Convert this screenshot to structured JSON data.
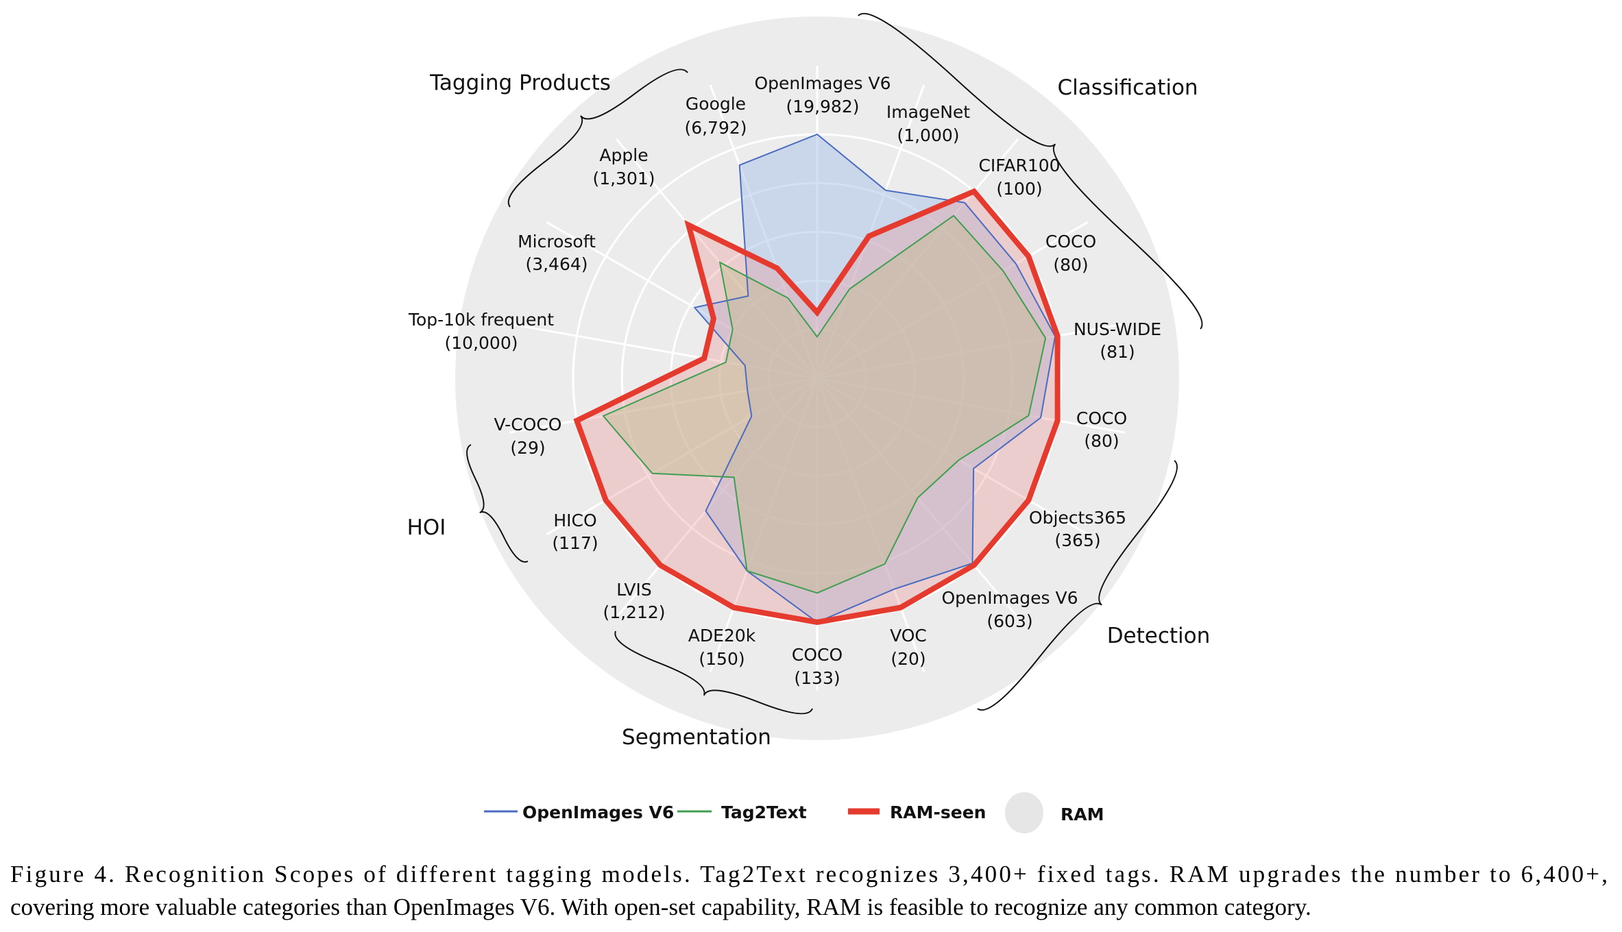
{
  "chart_data": {
    "type": "radar",
    "title": "",
    "range": [
      0,
      1
    ],
    "grid": true,
    "axes": [
      {
        "name": "OpenImages V6",
        "count": "(19,982)"
      },
      {
        "name": "ImageNet",
        "count": "(1,000)"
      },
      {
        "name": "CIFAR100",
        "count": "(100)"
      },
      {
        "name": "COCO",
        "count": "(80)"
      },
      {
        "name": "NUS-WIDE",
        "count": "(81)"
      },
      {
        "name": "COCO",
        "count": "(80)"
      },
      {
        "name": "Objects365",
        "count": "(365)"
      },
      {
        "name": "OpenImages V6",
        "count": "(603)"
      },
      {
        "name": "VOC",
        "count": "(20)"
      },
      {
        "name": "COCO",
        "count": "(133)"
      },
      {
        "name": "ADE20k",
        "count": "(150)"
      },
      {
        "name": "LVIS",
        "count": "(1,212)"
      },
      {
        "name": "HICO",
        "count": "(117)"
      },
      {
        "name": "V-COCO",
        "count": "(29)"
      },
      {
        "name": "Top-10k frequent",
        "count": "(10,000)"
      },
      {
        "name": "Microsoft",
        "count": "(3,464)"
      },
      {
        "name": "Apple",
        "count": "(1,301)"
      },
      {
        "name": "Google",
        "count": "(6,792)"
      }
    ],
    "groups": [
      {
        "name": "Tagging Products"
      },
      {
        "name": "Classification"
      },
      {
        "name": "Detection"
      },
      {
        "name": "Segmentation"
      },
      {
        "name": "HOI"
      }
    ],
    "series": [
      {
        "name": "OpenImages V6",
        "color": "#4a6bc0",
        "fill": "rgba(175,198,235,0.55)",
        "values": [
          1.0,
          0.82,
          0.94,
          0.94,
          0.99,
          0.93,
          0.74,
          0.99,
          0.92,
          1.0,
          0.84,
          0.71,
          0.31,
          0.29,
          0.3,
          0.58,
          0.44,
          0.93
        ]
      },
      {
        "name": "Tag2Text",
        "color": "#3f9e50",
        "fill": "rgba(175,210,150,0.5)",
        "values": [
          0.17,
          0.39,
          0.87,
          0.88,
          0.95,
          0.88,
          0.67,
          0.64,
          0.81,
          0.88,
          0.84,
          0.53,
          0.78,
          0.89,
          0.38,
          0.4,
          0.62,
          0.35
        ]
      },
      {
        "name": "RAM-seen",
        "color": "#e53a2e",
        "fill": "rgba(236,150,150,0.35)",
        "values": [
          0.27,
          0.62,
          1.0,
          1.0,
          1.0,
          1.0,
          1.0,
          1.0,
          1.0,
          1.0,
          1.0,
          1.0,
          1.0,
          1.0,
          0.47,
          0.49,
          0.82,
          0.48
        ]
      },
      {
        "name": "RAM",
        "color": "#e6e6e6",
        "fill": "#ececec",
        "values": "full circle (open-set)"
      }
    ],
    "legend_position": "bottom"
  },
  "caption": {
    "line1": "Figure 4. Recognition Scopes of different tagging models.  Tag2Text recognizes 3,400+ fixed tags.  RAM upgrades the number to 6,400+,",
    "line2": "covering more valuable categories than OpenImages V6. With open-set capability, RAM is feasible to recognize any common category."
  }
}
